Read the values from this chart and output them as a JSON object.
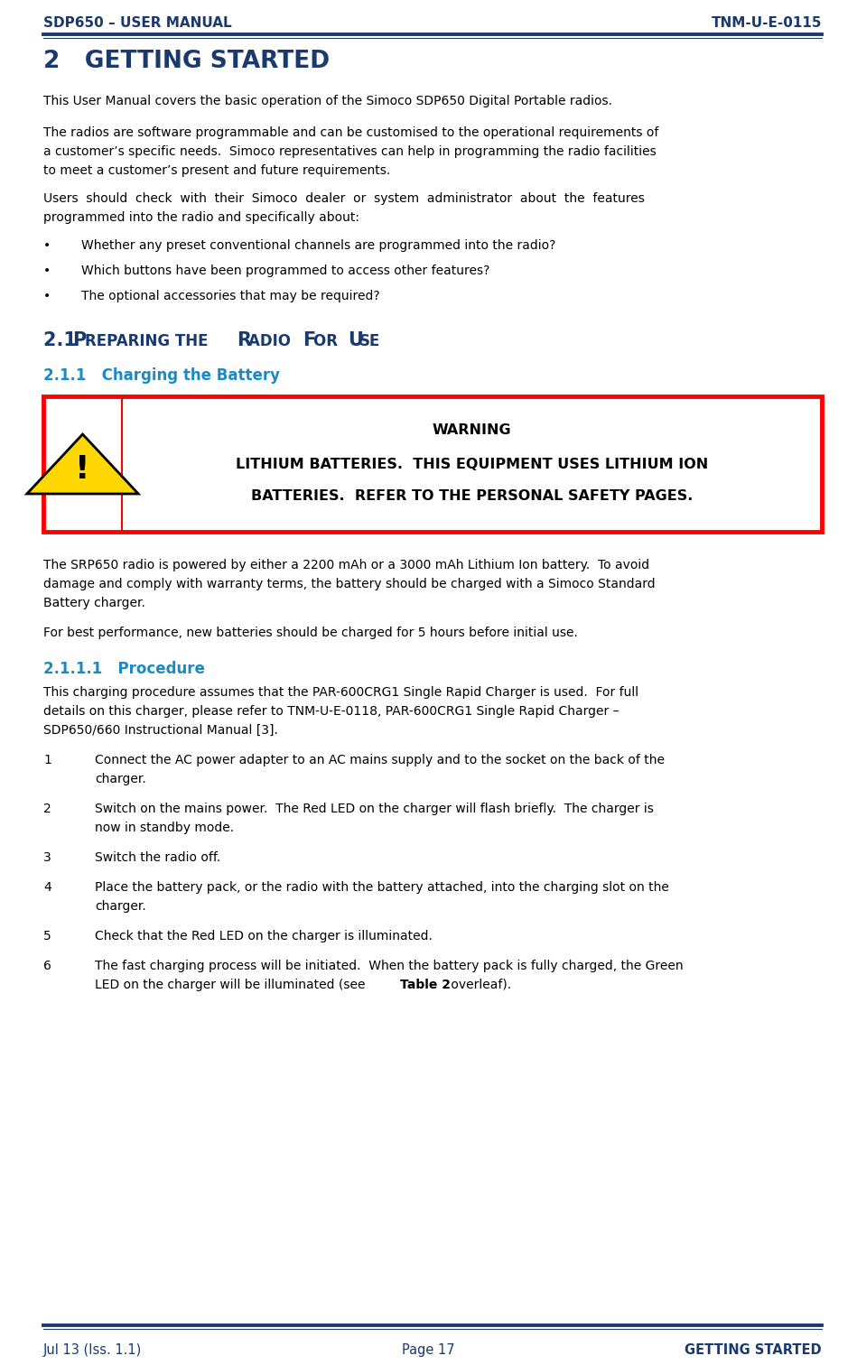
{
  "header_left": "SDP650 – USER MANUAL",
  "header_right": "TNM-U-E-0115",
  "footer_left": "Jul 13 (Iss. 1.1)",
  "footer_center": "Page 17",
  "footer_right": "GETTING STARTED",
  "header_color": "#1a3a6e",
  "section_title": "2   GETTING STARTED",
  "section_color": "#1a3a6e",
  "body_color": "#000000",
  "sub_section_21": "2.1   Pʀᴇᴘᴀʀɪɴɢ ᴛʜᴇ Rᴀᴅɪᴏ Fᴏʀ Uʀᴇ",
  "sub_section_21_display": "2.1   PREPARING THE RADIO FOR USE",
  "sub_section_211": "2.1.1   Charging the Battery",
  "sub_section_2111": "2.1.1.1   Procedure",
  "sub_section_21_color": "#1a3a6e",
  "sub_section_211_color": "#1a8ac4",
  "sub_section_2111_color": "#1a8ac4",
  "warning_border_color": "#ff0000",
  "warning_bg_color": "#ffffff",
  "para1": "This User Manual covers the basic operation of the Simoco SDP650 Digital Portable radios.",
  "para2a": "The radios are software programmable and can be customised to the operational requirements of",
  "para2b": "a customer’s specific needs.  Simoco representatives can help in programming the radio facilities",
  "para2c": "to meet a customer’s present and future requirements.",
  "para3a": "Users  should  check  with  their  Simoco  dealer  or  system  administrator  about  the  features",
  "para3b": "programmed into the radio and specifically about:",
  "bullet1": "Whether any preset conventional channels are programmed into the radio?",
  "bullet2": "Which buttons have been programmed to access other features?",
  "bullet3": "The optional accessories that may be required?",
  "warning_line1": "WARNING",
  "warning_line2": "LITHIUM BATTERIES.  THIS EQUIPMENT USES LITHIUM ION",
  "warning_line3": "BATTERIES.  REFER TO THE PERSONAL SAFETY PAGES.",
  "aw1": "The SRP650 radio is powered by either a 2200 mAh or a 3000 mAh Lithium Ion battery.  To avoid",
  "aw2": "damage and comply with warranty terms, the battery should be charged with a Simoco Standard",
  "aw3": "Battery charger.",
  "perf": "For best performance, new batteries should be charged for 5 hours before initial use.",
  "proc1": "This charging procedure assumes that the PAR-600CRG1 Single Rapid Charger is used.  For full",
  "proc2": "details on this charger, please refer to TNM-U-E-0118, PAR-600CRG1 Single Rapid Charger –",
  "proc3": "SDP650/660 Instructional Manual [3].",
  "s1": "Connect the AC power adapter to an AC mains supply and to the socket on the back of the",
  "s1b": "charger.",
  "s2": "Switch on the mains power.  The Red LED on the charger will flash briefly.  The charger is",
  "s2b": "now in standby mode.",
  "s3": "Switch the radio off.",
  "s4": "Place the battery pack, or the radio with the battery attached, into the charging slot on the",
  "s4b": "charger.",
  "s5": "Check that the Red LED on the charger is illuminated.",
  "s6a": "The fast charging process will be initiated.  When the battery pack is fully charged, the Green",
  "s6b": "LED on the charger will be illuminated (see ",
  "s6b2": "Table 2",
  "s6b3": " overleaf).",
  "bg_color": "#ffffff",
  "line_color": "#1a3a6e"
}
